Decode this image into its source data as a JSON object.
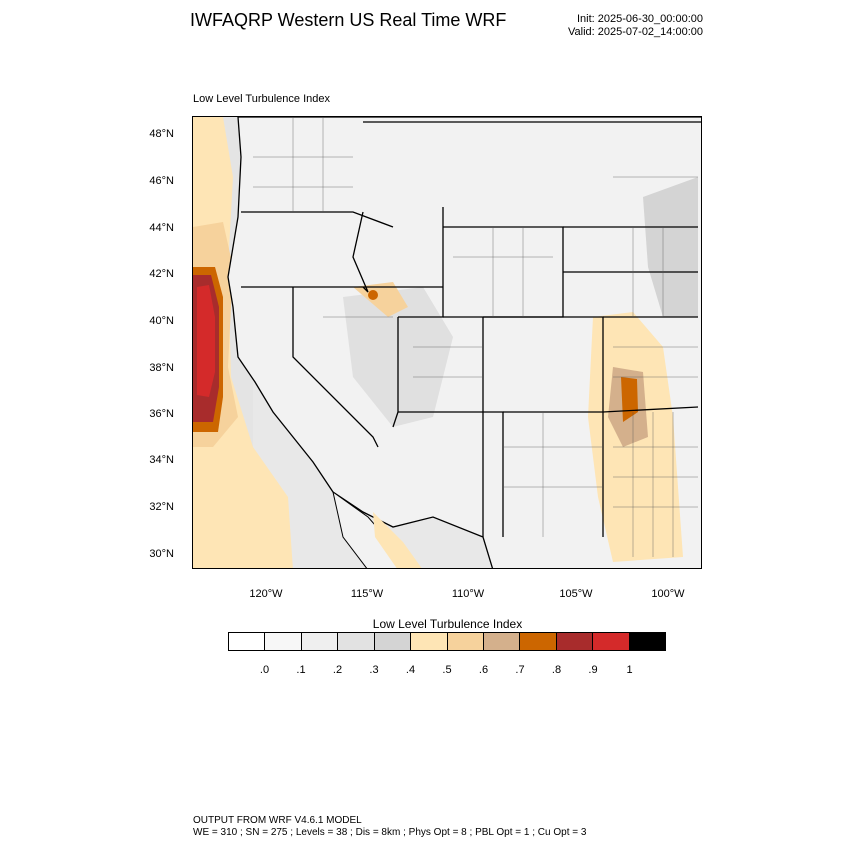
{
  "header": {
    "title": "IWFAQRP Western US Real Time WRF",
    "init": "Init: 2025-06-30_00:00:00",
    "valid": "Valid: 2025-07-02_14:00:00"
  },
  "map": {
    "subtitle": "Low Level Turbulence Index",
    "lat_labels": [
      "48°N",
      "46°N",
      "44°N",
      "42°N",
      "40°N",
      "38°N",
      "36°N",
      "34°N",
      "32°N",
      "30°N"
    ],
    "lon_labels": [
      "120°W",
      "115°W",
      "110°W",
      "105°W",
      "100°W"
    ],
    "region": "Western United States"
  },
  "colorbar": {
    "title": "Low Level Turbulence Index",
    "labels": [
      ".0",
      ".1",
      ".2",
      ".3",
      ".4",
      ".5",
      ".6",
      ".7",
      ".8",
      ".9",
      "1"
    ],
    "colors": [
      "#ffffff",
      "#f7f7f7",
      "#efefef",
      "#e2e2e2",
      "#d4d4d4",
      "#fee5b5",
      "#f6d29c",
      "#d4b08c",
      "#cc6600",
      "#a82c2c",
      "#d42a2a",
      "#000000"
    ]
  },
  "footer": {
    "line1": "OUTPUT FROM WRF V4.6.1 MODEL",
    "line2": "WE = 310 ; SN = 275 ; Levels = 38 ; Dis = 8km ; Phys Opt = 8 ; PBL Opt = 1 ; Cu Opt = 3"
  }
}
